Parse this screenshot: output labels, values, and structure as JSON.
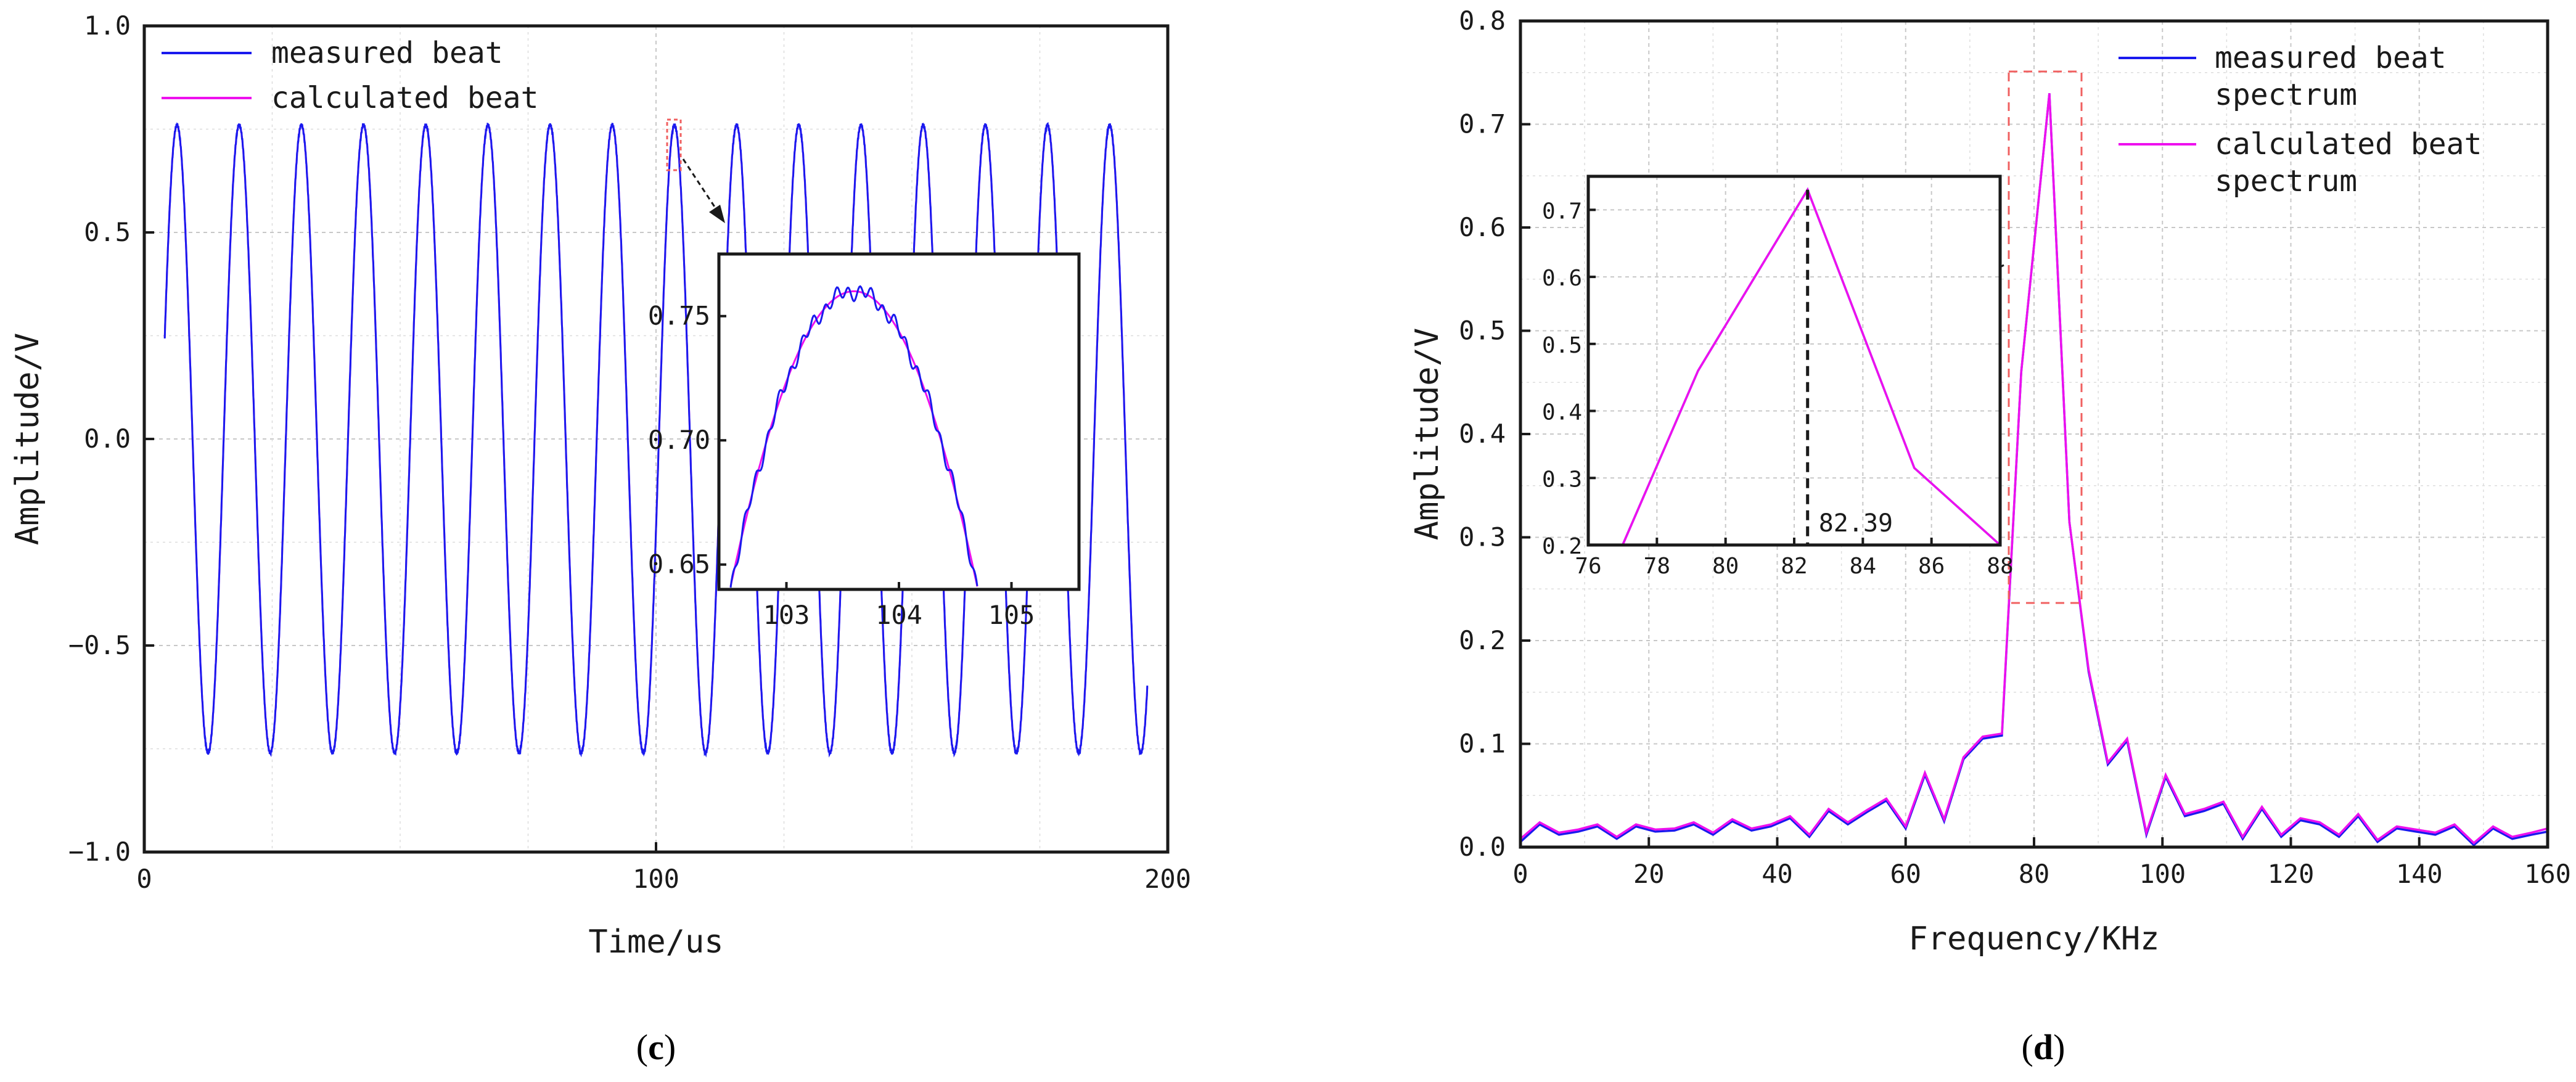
{
  "panels": {
    "c": {
      "label_prefix": "(",
      "label_letter": "c",
      "label_suffix": ")"
    },
    "d": {
      "label_prefix": "(",
      "label_letter": "d",
      "label_suffix": ")"
    }
  },
  "colors": {
    "measured": "#1a1aee",
    "calculated": "#ee10ee",
    "zoom_box": "#f06060",
    "axis": "#1a1a1a",
    "grid": "#c8c8c8"
  },
  "chart_data": [
    {
      "id": "c",
      "type": "line",
      "title": "",
      "xlabel": "Time/us",
      "ylabel": "Amplitude/V",
      "xlim": [
        0,
        200
      ],
      "ylim": [
        -1.0,
        1.0
      ],
      "xticks": [
        0,
        100,
        200
      ],
      "xtick_labels": [
        "0",
        "100",
        "200"
      ],
      "yticks": [
        -1.0,
        -0.5,
        0.0,
        0.5,
        1.0
      ],
      "ytick_labels": [
        "−1.0",
        "−0.5",
        "0.0",
        "0.5",
        "1.0"
      ],
      "grid": true,
      "legend_position": "top-left",
      "signal": {
        "amplitude": 0.76,
        "period_us": 12.15,
        "peak_time_us": 103.6,
        "start_us": 4.0,
        "end_us": 196.0
      },
      "series": [
        {
          "name": "measured beat",
          "color": "#1a1aee"
        },
        {
          "name": "calculated beat",
          "color": "#ee10ee"
        }
      ],
      "inset": {
        "xlim": [
          102.4,
          105.6
        ],
        "ylim": [
          0.64,
          0.775
        ],
        "xticks": [
          103,
          104,
          105
        ],
        "xtick_labels": [
          "103",
          "104",
          "105"
        ],
        "yticks": [
          0.65,
          0.7,
          0.75
        ],
        "ytick_labels": [
          "0.65",
          "0.70",
          "0.75"
        ]
      }
    },
    {
      "id": "d",
      "type": "line",
      "title": "",
      "xlabel": "Frequency/KHz",
      "ylabel": "Amplitude/V",
      "xlim": [
        0,
        160
      ],
      "ylim": [
        0,
        0.8
      ],
      "xticks": [
        0,
        20,
        40,
        60,
        80,
        100,
        120,
        140,
        160
      ],
      "xtick_labels": [
        "0",
        "20",
        "40",
        "60",
        "80",
        "100",
        "120",
        "140",
        "160"
      ],
      "yticks": [
        0.0,
        0.1,
        0.2,
        0.3,
        0.4,
        0.5,
        0.6,
        0.7,
        0.8
      ],
      "ytick_labels": [
        "0.0",
        "0.1",
        "0.2",
        "0.3",
        "0.4",
        "0.5",
        "0.6",
        "0.7",
        "0.8"
      ],
      "grid": true,
      "legend_position": "top-right",
      "x": [
        0,
        3,
        6,
        9,
        12,
        15,
        18,
        21,
        24,
        27,
        30,
        33,
        36,
        39,
        42,
        45,
        48,
        51,
        54,
        57,
        60,
        63,
        66,
        69,
        72,
        75,
        78,
        82.39,
        85.5,
        88.5,
        91.5,
        94.5,
        97.5,
        100.5,
        103.5,
        106.5,
        109.5,
        112.5,
        115.5,
        118.5,
        121.5,
        124.5,
        127.5,
        130.5,
        133.5,
        136.5,
        139.5,
        142.5,
        145.5,
        148.5,
        151.5,
        154.5,
        157.5,
        160
      ],
      "series": [
        {
          "name": "measured beat spectrum",
          "name_lines": [
            "measured beat",
            "spectrum"
          ],
          "color": "#1a1aee",
          "values": [
            0.005,
            0.022,
            0.012,
            0.015,
            0.02,
            0.008,
            0.02,
            0.015,
            0.016,
            0.022,
            0.012,
            0.025,
            0.016,
            0.02,
            0.028,
            0.01,
            0.035,
            0.022,
            0.034,
            0.045,
            0.018,
            0.07,
            0.025,
            0.085,
            0.105,
            0.108,
            0.46,
            0.73,
            0.315,
            0.17,
            0.08,
            0.103,
            0.012,
            0.068,
            0.03,
            0.035,
            0.042,
            0.008,
            0.037,
            0.01,
            0.026,
            0.022,
            0.01,
            0.03,
            0.005,
            0.018,
            0.015,
            0.012,
            0.02,
            0.002,
            0.018,
            0.008,
            0.012,
            0.015
          ]
        },
        {
          "name": "calculated beat spectrum",
          "name_lines": [
            "calculated beat",
            "spectrum"
          ],
          "color": "#ee10ee",
          "values": [
            0.008,
            0.024,
            0.014,
            0.017,
            0.022,
            0.01,
            0.022,
            0.017,
            0.018,
            0.024,
            0.014,
            0.027,
            0.018,
            0.022,
            0.03,
            0.012,
            0.037,
            0.024,
            0.036,
            0.047,
            0.02,
            0.072,
            0.027,
            0.087,
            0.107,
            0.11,
            0.46,
            0.73,
            0.315,
            0.172,
            0.082,
            0.105,
            0.014,
            0.07,
            0.032,
            0.037,
            0.044,
            0.01,
            0.039,
            0.012,
            0.028,
            0.024,
            0.012,
            0.032,
            0.007,
            0.02,
            0.017,
            0.014,
            0.022,
            0.004,
            0.02,
            0.01,
            0.014,
            0.018
          ]
        }
      ],
      "inset": {
        "xlim": [
          76,
          88
        ],
        "ylim": [
          0.2,
          0.75
        ],
        "xticks": [
          76,
          78,
          80,
          82,
          84,
          86,
          88
        ],
        "xtick_labels": [
          "76",
          "78",
          "80",
          "82",
          "84",
          "86",
          "88"
        ],
        "yticks": [
          0.2,
          0.3,
          0.4,
          0.5,
          0.6,
          0.7
        ],
        "ytick_labels": [
          "0.2",
          "0.3",
          "0.4",
          "0.5",
          "0.6",
          "0.7"
        ],
        "peak_label": "82.39",
        "peak_x": 82.39,
        "x": [
          76,
          77,
          79.2,
          82.39,
          85.5,
          88
        ],
        "values": [
          0.15,
          0.2,
          0.46,
          0.73,
          0.315,
          0.2
        ]
      }
    }
  ]
}
